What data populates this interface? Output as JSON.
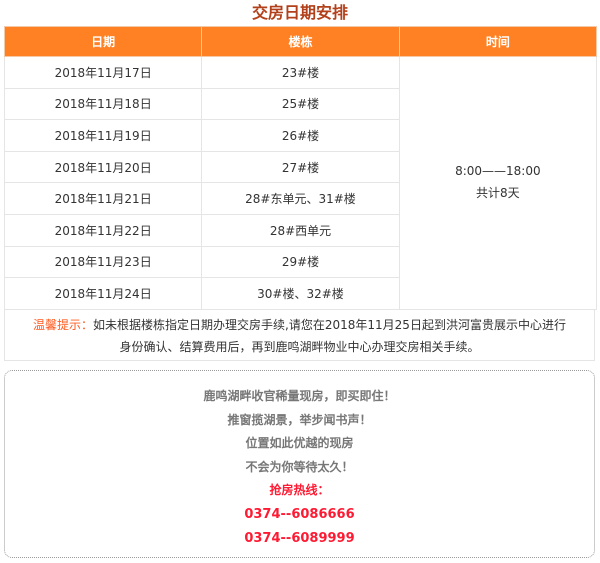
{
  "title": "交房日期安排",
  "headers": [
    "日期",
    "楼栋",
    "时间"
  ],
  "rows": [
    {
      "date": "2018年11月17日",
      "building": "23#楼"
    },
    {
      "date": "2018年11月18日",
      "building": "25#楼"
    },
    {
      "date": "2018年11月19日",
      "building": "26#楼"
    },
    {
      "date": "2018年11月20日",
      "building": "27#楼"
    },
    {
      "date": "2018年11月21日",
      "building": "28#东单元、31#楼"
    },
    {
      "date": "2018年11月22日",
      "building": "28#西单元"
    },
    {
      "date": "2018年11月23日",
      "building": "29#楼"
    },
    {
      "date": "2018年11月24日",
      "building": "30#楼、32#楼"
    }
  ],
  "time": {
    "hours": "8:00——18:00",
    "total": "共计8天"
  },
  "note": {
    "label": "温馨提示：",
    "line1": "如未根据楼栋指定日期办理交房手续,请您在2018年11月25日起到洪河富贵展示中心进行",
    "line2": "身份确认、结算费用后，再到鹿鸣湖畔物业中心办理交房相关手续。"
  },
  "promo": {
    "lines": [
      "鹿鸣湖畔收官稀量现房，即买即住！",
      "推窗揽湖景，举步闻书声！",
      "位置如此优越的现房",
      "不会为你等待太久！"
    ],
    "hotline_label": "抢房热线：",
    "phones": [
      "0374--6086666",
      "0374--6089999"
    ]
  },
  "colors": {
    "header": "#ff8124",
    "title": "#b2401a",
    "accent": "#ff1a33"
  }
}
